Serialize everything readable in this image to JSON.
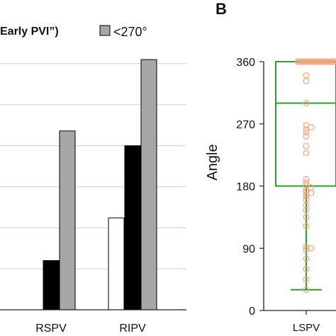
{
  "panel_a": {
    "legend_partial_text": "Early PVI”)",
    "legend_entry": "<270°"
  },
  "panel_b": {
    "label": "B"
  },
  "chart_data": [
    {
      "type": "bar",
      "categories": [
        "RSPV",
        "RIPV"
      ],
      "series": [
        {
          "color": "#ffffff",
          "values": [
            null,
            11.2
          ]
        },
        {
          "color": "#000000",
          "values": [
            6.0,
            20.0
          ]
        },
        {
          "name": "<270°",
          "color": "#a6a6a6",
          "values": [
            21.8,
            30.5
          ]
        }
      ],
      "ylim": [
        0,
        35
      ],
      "grid": true,
      "legend_placement": "top",
      "tick_labels": []
    },
    {
      "type": "scatter",
      "categories": [
        "LSPV"
      ],
      "ylabel": "Angle",
      "ylim": [
        0,
        360
      ],
      "yticks": [
        0,
        90,
        180,
        270,
        360
      ],
      "point_color": "#f4a882",
      "box_color": "#2e9b2e",
      "box": {
        "q1": 180,
        "median": 300,
        "q3": 360,
        "whisker_low": 30,
        "whisker_high": 360
      },
      "points_at_max": 27,
      "values": [
        340,
        332,
        300,
        268,
        262,
        265,
        258,
        252,
        238,
        228,
        190,
        185,
        181,
        178,
        175,
        172,
        170,
        168,
        165,
        160,
        152,
        145,
        135,
        122,
        92,
        90,
        88,
        75,
        60,
        45,
        30
      ]
    }
  ]
}
